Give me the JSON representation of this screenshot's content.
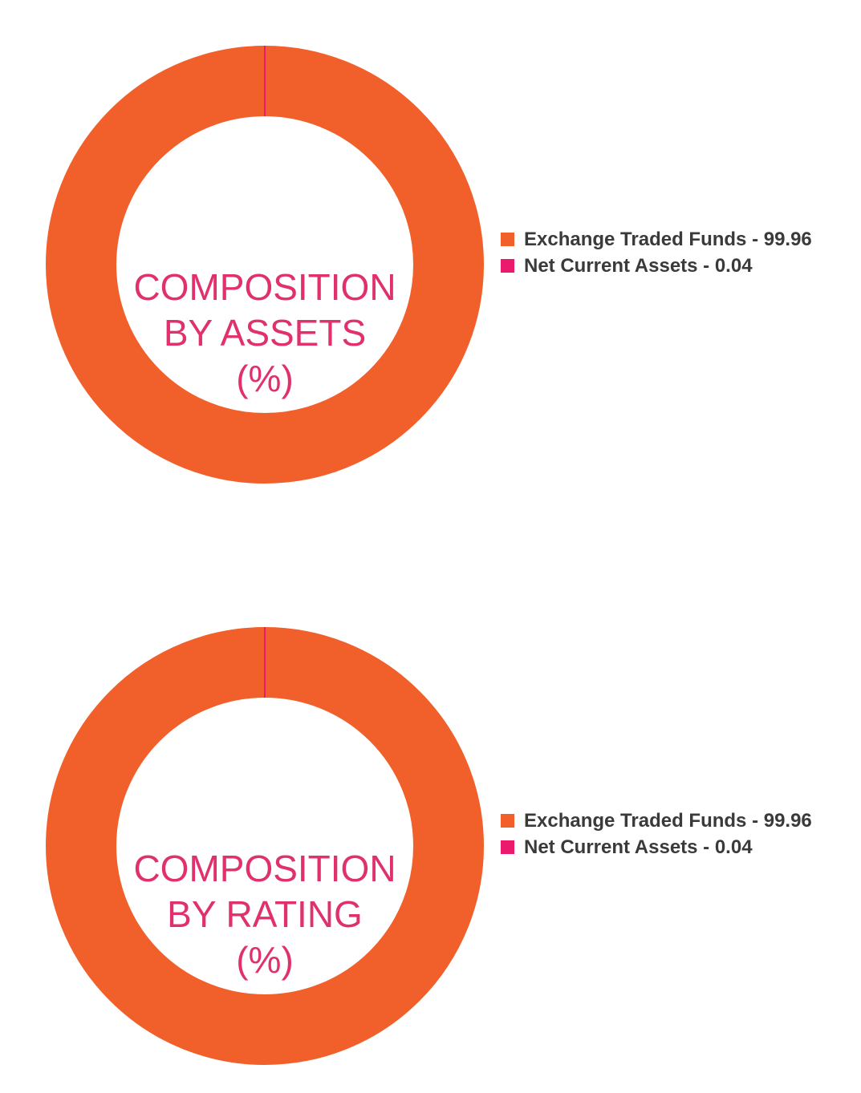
{
  "chart_data": [
    {
      "type": "pie",
      "title_lines": [
        "COMPOSITION",
        "BY ASSETS",
        "(%)"
      ],
      "categories": [
        "Exchange Traded Funds",
        "Net Current Assets"
      ],
      "values": [
        99.96,
        0.04
      ],
      "colors": [
        "#f15f2a",
        "#ec1a6c"
      ],
      "legend": [
        "Exchange Traded Funds - 99.96",
        "Net Current Assets - 0.04"
      ],
      "legend_position": "right",
      "donut": true
    },
    {
      "type": "pie",
      "title_lines": [
        "COMPOSITION",
        "BY RATING",
        "(%)"
      ],
      "categories": [
        "Exchange Traded Funds",
        "Net Current Assets"
      ],
      "values": [
        99.96,
        0.04
      ],
      "colors": [
        "#f15f2a",
        "#ec1a6c"
      ],
      "legend": [
        "Exchange Traded Funds - 99.96",
        "Net Current Assets - 0.04"
      ],
      "legend_position": "right",
      "donut": true
    }
  ],
  "colors": {
    "title": "#e0316e",
    "legend_text": "#3a3a3a"
  }
}
